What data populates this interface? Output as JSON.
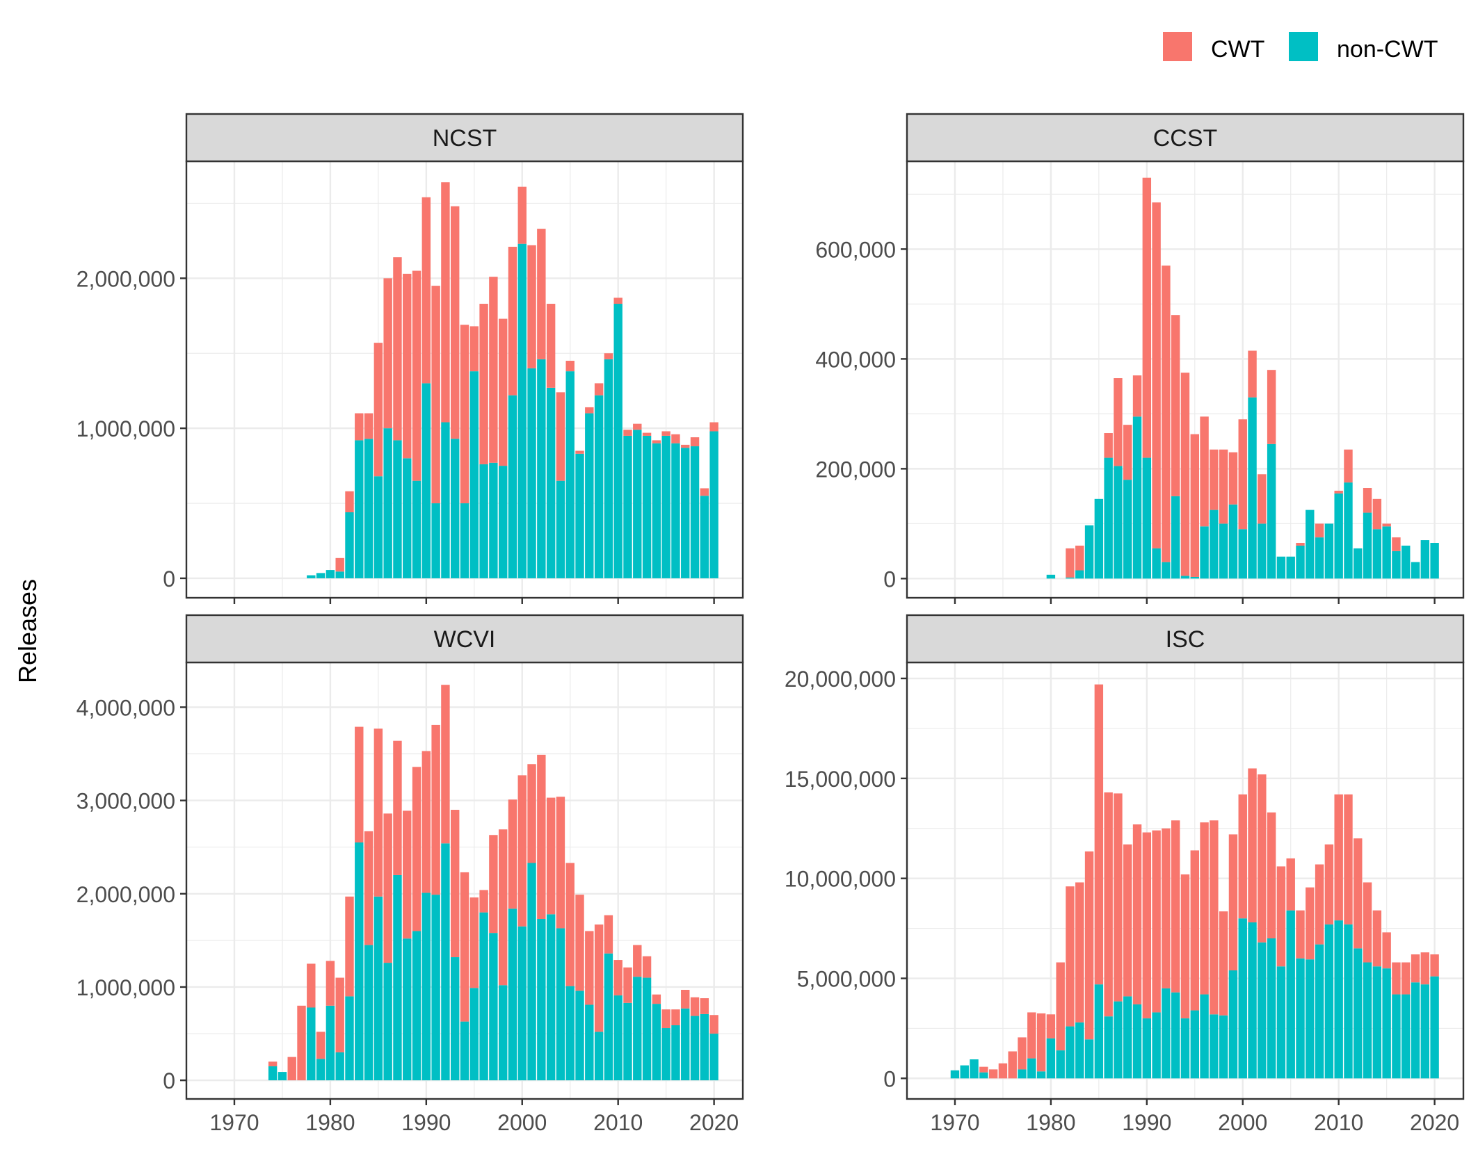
{
  "colors": {
    "CWT": "#F8766D",
    "non-CWT": "#00BFC4",
    "strip": "#D9D9D9",
    "grid": "#EBEBEB",
    "text": "#4D4D4D"
  },
  "legend": {
    "items": [
      {
        "label": "CWT",
        "color": "#F8766D"
      },
      {
        "label": "non-CWT",
        "color": "#00BFC4"
      }
    ],
    "position": "top-right"
  },
  "ylabel": "Releases",
  "chart_data": [
    {
      "type": "bar",
      "stacked": true,
      "panel": "NCST",
      "xlim": [
        1965,
        2023
      ],
      "xticks": [
        1970,
        1980,
        1990,
        2000,
        2010,
        2020
      ],
      "ylim": [
        -130000,
        2780000
      ],
      "yticks": [
        0,
        1000000,
        2000000
      ],
      "ytick_labels": [
        "0",
        "1,000,000",
        "2,000,000"
      ],
      "years": [
        1978,
        1979,
        1980,
        1981,
        1982,
        1983,
        1984,
        1985,
        1986,
        1987,
        1988,
        1989,
        1990,
        1991,
        1992,
        1993,
        1994,
        1995,
        1996,
        1997,
        1998,
        1999,
        2000,
        2001,
        2002,
        2003,
        2004,
        2005,
        2006,
        2007,
        2008,
        2009,
        2010,
        2011,
        2012,
        2013,
        2014,
        2015,
        2016,
        2017,
        2018,
        2019,
        2020
      ],
      "series": [
        {
          "name": "non-CWT",
          "values": [
            20000,
            35000,
            55000,
            45000,
            440000,
            920000,
            930000,
            680000,
            1000000,
            920000,
            800000,
            650000,
            1300000,
            500000,
            1040000,
            930000,
            500000,
            1380000,
            760000,
            770000,
            750000,
            1220000,
            2230000,
            1400000,
            1460000,
            1270000,
            650000,
            1380000,
            830000,
            1100000,
            1220000,
            1460000,
            1830000,
            950000,
            990000,
            950000,
            900000,
            950000,
            900000,
            870000,
            880000,
            550000,
            980000
          ]
        },
        {
          "name": "CWT",
          "values": [
            0,
            0,
            0,
            90000,
            140000,
            180000,
            170000,
            890000,
            1000000,
            1220000,
            1230000,
            1400000,
            1240000,
            1450000,
            1600000,
            1550000,
            1190000,
            300000,
            1070000,
            1240000,
            980000,
            990000,
            380000,
            820000,
            870000,
            560000,
            590000,
            70000,
            20000,
            40000,
            80000,
            40000,
            40000,
            40000,
            40000,
            20000,
            20000,
            30000,
            60000,
            20000,
            60000,
            50000,
            60000
          ]
        }
      ]
    },
    {
      "type": "bar",
      "stacked": true,
      "panel": "CCST",
      "xlim": [
        1965,
        2023
      ],
      "xticks": [
        1970,
        1980,
        1990,
        2000,
        2010,
        2020
      ],
      "ylim": [
        -35000,
        760000
      ],
      "yticks": [
        0,
        200000,
        400000,
        600000
      ],
      "ytick_labels": [
        "0",
        "200,000",
        "400,000",
        "600,000"
      ],
      "years": [
        1980,
        1982,
        1983,
        1984,
        1985,
        1986,
        1987,
        1988,
        1989,
        1990,
        1991,
        1992,
        1993,
        1994,
        1995,
        1996,
        1997,
        1998,
        1999,
        2000,
        2001,
        2002,
        2003,
        2004,
        2005,
        2006,
        2007,
        2008,
        2009,
        2010,
        2011,
        2012,
        2013,
        2014,
        2015,
        2016,
        2017,
        2018,
        2019,
        2020
      ],
      "series": [
        {
          "name": "non-CWT",
          "values": [
            7000,
            2000,
            15000,
            97000,
            145000,
            220000,
            205000,
            180000,
            295000,
            220000,
            55000,
            30000,
            150000,
            5000,
            3000,
            95000,
            125000,
            100000,
            135000,
            90000,
            330000,
            100000,
            245000,
            40000,
            40000,
            60000,
            125000,
            75000,
            100000,
            155000,
            175000,
            55000,
            120000,
            90000,
            95000,
            50000,
            60000,
            30000,
            70000,
            65000
          ]
        },
        {
          "name": "CWT",
          "values": [
            0,
            53000,
            45000,
            0,
            0,
            45000,
            160000,
            100000,
            75000,
            510000,
            630000,
            540000,
            330000,
            370000,
            260000,
            200000,
            110000,
            135000,
            95000,
            200000,
            85000,
            90000,
            135000,
            0,
            0,
            5000,
            0,
            25000,
            0,
            5000,
            60000,
            0,
            45000,
            55000,
            5000,
            25000,
            0,
            0,
            0,
            0
          ]
        }
      ]
    },
    {
      "type": "bar",
      "stacked": true,
      "panel": "WCVI",
      "xlim": [
        1965,
        2023
      ],
      "xticks": [
        1970,
        1980,
        1990,
        2000,
        2010,
        2020
      ],
      "ylim": [
        -200000,
        4480000
      ],
      "yticks": [
        0,
        1000000,
        2000000,
        3000000,
        4000000
      ],
      "ytick_labels": [
        "0",
        "1,000,000",
        "2,000,000",
        "3,000,000",
        "4,000,000"
      ],
      "years": [
        1974,
        1975,
        1976,
        1977,
        1978,
        1979,
        1980,
        1981,
        1982,
        1983,
        1984,
        1985,
        1986,
        1987,
        1988,
        1989,
        1990,
        1991,
        1992,
        1993,
        1994,
        1995,
        1996,
        1997,
        1998,
        1999,
        2000,
        2001,
        2002,
        2003,
        2004,
        2005,
        2006,
        2007,
        2008,
        2009,
        2010,
        2011,
        2012,
        2013,
        2014,
        2015,
        2016,
        2017,
        2018,
        2019,
        2020
      ],
      "series": [
        {
          "name": "non-CWT",
          "values": [
            150000,
            90000,
            0,
            0,
            780000,
            230000,
            800000,
            300000,
            900000,
            2550000,
            1450000,
            1970000,
            1260000,
            2200000,
            1520000,
            1600000,
            2010000,
            1990000,
            2540000,
            1320000,
            630000,
            990000,
            1800000,
            1580000,
            1020000,
            1840000,
            1650000,
            2330000,
            1730000,
            1780000,
            1630000,
            1010000,
            960000,
            810000,
            520000,
            1360000,
            910000,
            830000,
            1110000,
            1100000,
            820000,
            560000,
            590000,
            770000,
            690000,
            710000,
            500000
          ]
        },
        {
          "name": "CWT",
          "values": [
            50000,
            0,
            250000,
            800000,
            470000,
            290000,
            480000,
            800000,
            1070000,
            1240000,
            1220000,
            1800000,
            1600000,
            1440000,
            1370000,
            1760000,
            1520000,
            1820000,
            1700000,
            1580000,
            1600000,
            970000,
            240000,
            1050000,
            1670000,
            1170000,
            1620000,
            1060000,
            1760000,
            1250000,
            1410000,
            1320000,
            1030000,
            790000,
            1150000,
            410000,
            380000,
            380000,
            340000,
            230000,
            100000,
            200000,
            170000,
            200000,
            200000,
            170000,
            200000
          ]
        }
      ]
    },
    {
      "type": "bar",
      "stacked": true,
      "panel": "ISC",
      "xlim": [
        1965,
        2023
      ],
      "xticks": [
        1970,
        1980,
        1990,
        2000,
        2010,
        2020
      ],
      "ylim": [
        -1030000,
        20800000
      ],
      "yticks": [
        0,
        5000000,
        10000000,
        15000000,
        20000000
      ],
      "ytick_labels": [
        "0",
        "5,000,000",
        "10,000,000",
        "15,000,000",
        "20,000,000"
      ],
      "years": [
        1970,
        1971,
        1972,
        1973,
        1974,
        1975,
        1976,
        1977,
        1978,
        1979,
        1980,
        1981,
        1982,
        1983,
        1984,
        1985,
        1986,
        1987,
        1988,
        1989,
        1990,
        1991,
        1992,
        1993,
        1994,
        1995,
        1996,
        1997,
        1998,
        1999,
        2000,
        2001,
        2002,
        2003,
        2004,
        2005,
        2006,
        2007,
        2008,
        2009,
        2010,
        2011,
        2012,
        2013,
        2014,
        2015,
        2016,
        2017,
        2018,
        2019,
        2020
      ],
      "series": [
        {
          "name": "non-CWT",
          "values": [
            400000,
            650000,
            950000,
            300000,
            0,
            0,
            0,
            450000,
            1000000,
            350000,
            2000000,
            1400000,
            2600000,
            2800000,
            1950000,
            4700000,
            3100000,
            3850000,
            4100000,
            3700000,
            3000000,
            3300000,
            4500000,
            4300000,
            3000000,
            3400000,
            4200000,
            3200000,
            3150000,
            5400000,
            8000000,
            7800000,
            6800000,
            7000000,
            5600000,
            8400000,
            6000000,
            5950000,
            6700000,
            7700000,
            7900000,
            7700000,
            6500000,
            5800000,
            5600000,
            5500000,
            4200000,
            4200000,
            4800000,
            4700000,
            5100000
          ]
        },
        {
          "name": "CWT",
          "values": [
            0,
            0,
            0,
            280000,
            450000,
            750000,
            1350000,
            1600000,
            2300000,
            2900000,
            1200000,
            4400000,
            7000000,
            7000000,
            9400000,
            15000000,
            11200000,
            10400000,
            7600000,
            9000000,
            9300000,
            9100000,
            8000000,
            8600000,
            7200000,
            8000000,
            8600000,
            9700000,
            5200000,
            6800000,
            6200000,
            7700000,
            8400000,
            6300000,
            5000000,
            2600000,
            2400000,
            3600000,
            4000000,
            4000000,
            6300000,
            6500000,
            5500000,
            4000000,
            2800000,
            1800000,
            1600000,
            1600000,
            1400000,
            1600000,
            1100000
          ]
        }
      ]
    }
  ]
}
